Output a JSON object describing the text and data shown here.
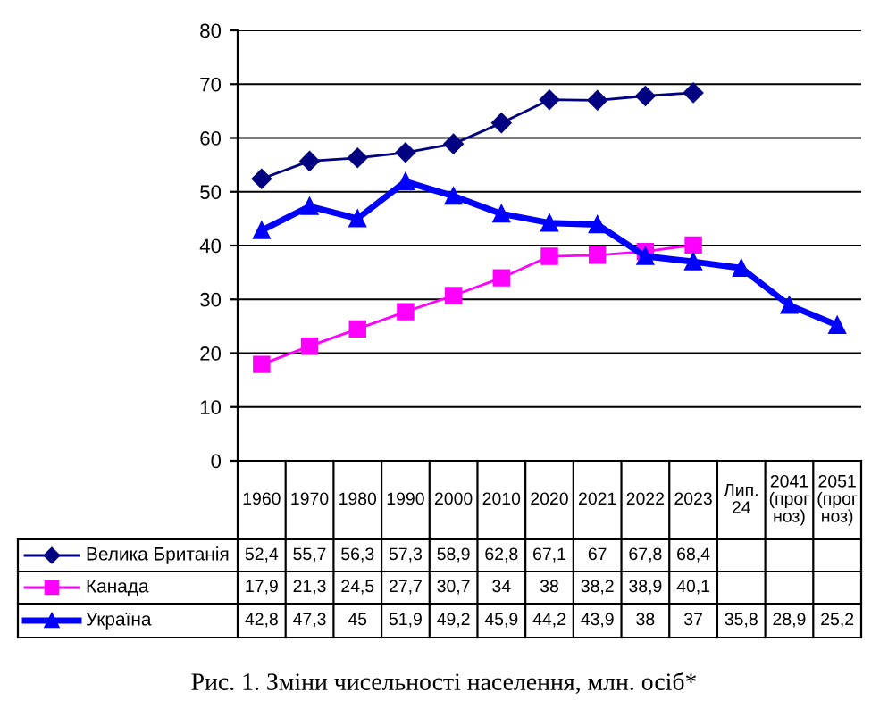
{
  "chart_data": {
    "type": "line",
    "categories": [
      "1960",
      "1970",
      "1980",
      "1990",
      "2000",
      "2010",
      "2020",
      "2021",
      "2022",
      "2023",
      "Лип. 24",
      "2041 (прогноз)",
      "2051 (прогноз)"
    ],
    "series": [
      {
        "name": "Велика Британія",
        "color": "#000080",
        "marker": "diamond",
        "values": [
          52.4,
          55.7,
          56.3,
          57.3,
          58.9,
          62.8,
          67.1,
          67,
          67.8,
          68.4,
          null,
          null,
          null
        ],
        "value_labels": [
          "52,4",
          "55,7",
          "56,3",
          "57,3",
          "58,9",
          "62,8",
          "67,1",
          "67",
          "67,8",
          "68,4",
          null,
          null,
          null
        ]
      },
      {
        "name": "Канада",
        "color": "#ff00ff",
        "marker": "square",
        "values": [
          17.9,
          21.3,
          24.5,
          27.7,
          30.7,
          34,
          38,
          38.2,
          38.9,
          40.1,
          null,
          null,
          null
        ],
        "value_labels": [
          "17,9",
          "21,3",
          "24,5",
          "27,7",
          "30,7",
          "34",
          "38",
          "38,2",
          "38,9",
          "40,1",
          null,
          null,
          null
        ]
      },
      {
        "name": "Україна",
        "color": "#0000ff",
        "marker": "triangle",
        "values": [
          42.8,
          47.3,
          45,
          51.9,
          49.2,
          45.9,
          44.2,
          43.9,
          38,
          37,
          35.8,
          28.9,
          25.2
        ],
        "value_labels": [
          "42,8",
          "47,3",
          "45",
          "51,9",
          "49,2",
          "45,9",
          "44,2",
          "43,9",
          "38",
          "37",
          "35,8",
          "28,9",
          "25,2"
        ]
      }
    ],
    "ylim": [
      0,
      80
    ],
    "yticks": [
      0,
      10,
      20,
      30,
      40,
      50,
      60,
      70,
      80
    ],
    "grid": "y",
    "legend": "bottom left",
    "annotations": [
      "Рис. 1. Зміни чисельності населення, млн. осіб*"
    ]
  }
}
